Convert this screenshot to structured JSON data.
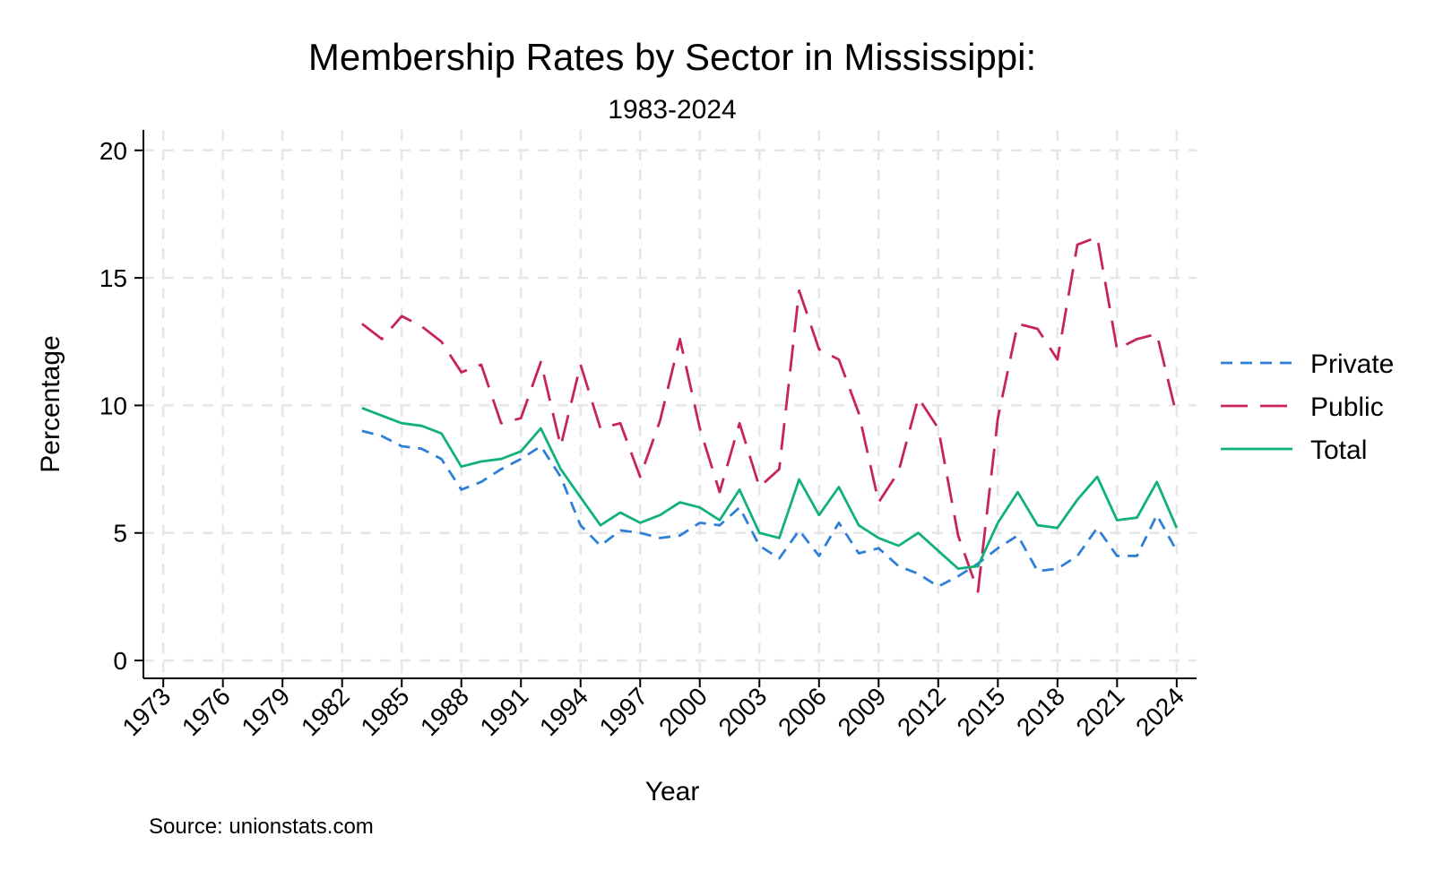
{
  "chart_data": {
    "type": "line",
    "title": "Membership Rates by Sector in Mississippi:",
    "subtitle": "1983-2024",
    "xlabel": "Year",
    "ylabel": "Percentage",
    "source": "Source: unionstats.com",
    "xlim": [
      1972,
      2025
    ],
    "ylim": [
      -0.7,
      20.8
    ],
    "x_ticks": [
      1973,
      1976,
      1979,
      1982,
      1985,
      1988,
      1991,
      1994,
      1997,
      2000,
      2003,
      2006,
      2009,
      2012,
      2015,
      2018,
      2021,
      2024
    ],
    "y_ticks": [
      0,
      5,
      10,
      15,
      20
    ],
    "grid": true,
    "legend_position": "right",
    "x": [
      1983,
      1984,
      1985,
      1986,
      1987,
      1988,
      1989,
      1990,
      1991,
      1992,
      1993,
      1994,
      1995,
      1996,
      1997,
      1998,
      1999,
      2000,
      2001,
      2002,
      2003,
      2004,
      2005,
      2006,
      2007,
      2008,
      2009,
      2010,
      2011,
      2012,
      2013,
      2014,
      2015,
      2016,
      2017,
      2018,
      2019,
      2020,
      2021,
      2022,
      2023,
      2024
    ],
    "series": [
      {
        "name": "Private",
        "color": "#2f7fd9",
        "dash": "short",
        "values": [
          9.0,
          8.8,
          8.4,
          8.3,
          7.9,
          6.7,
          7.0,
          7.5,
          7.9,
          8.4,
          7.2,
          5.3,
          4.5,
          5.1,
          5.0,
          4.8,
          4.9,
          5.4,
          5.3,
          6.0,
          4.5,
          4.0,
          5.1,
          4.1,
          5.4,
          4.2,
          4.4,
          3.7,
          3.4,
          2.9,
          3.3,
          3.8,
          4.4,
          4.9,
          3.5,
          3.6,
          4.1,
          5.2,
          4.1,
          4.1,
          5.7,
          4.3
        ]
      },
      {
        "name": "Public",
        "color": "#c8235a",
        "dash": "long",
        "values": [
          13.2,
          12.6,
          13.5,
          13.1,
          12.5,
          11.3,
          11.6,
          9.3,
          9.5,
          11.7,
          8.4,
          11.6,
          9.1,
          9.3,
          7.2,
          9.4,
          12.6,
          9.1,
          6.6,
          9.3,
          6.8,
          7.5,
          14.5,
          12.2,
          11.8,
          9.7,
          6.2,
          7.4,
          10.3,
          9.1,
          4.9,
          2.7,
          9.5,
          13.2,
          13.0,
          11.8,
          16.3,
          16.6,
          12.2,
          12.6,
          12.8,
          9.6
        ]
      },
      {
        "name": "Total",
        "color": "#11b07e",
        "dash": "solid",
        "values": [
          9.9,
          9.6,
          9.3,
          9.2,
          8.9,
          7.6,
          7.8,
          7.9,
          8.2,
          9.1,
          7.5,
          6.4,
          5.3,
          5.8,
          5.4,
          5.7,
          6.2,
          6.0,
          5.5,
          6.7,
          5.0,
          4.8,
          7.1,
          5.7,
          6.8,
          5.3,
          4.8,
          4.5,
          5.0,
          4.3,
          3.6,
          3.7,
          5.4,
          6.6,
          5.3,
          5.2,
          6.3,
          7.2,
          5.5,
          5.6,
          7.0,
          5.2
        ]
      }
    ]
  }
}
